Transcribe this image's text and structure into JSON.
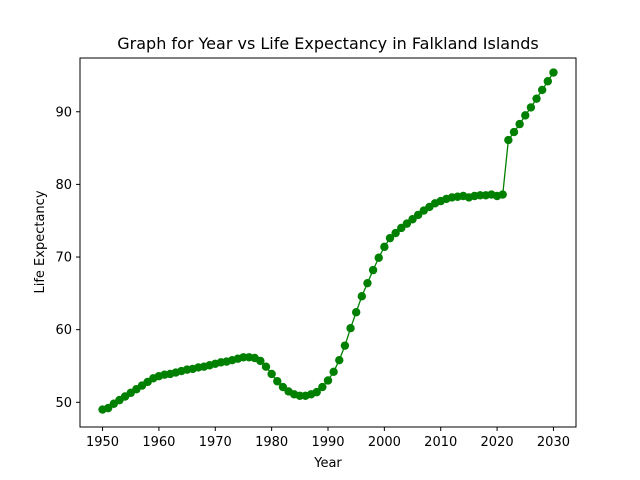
{
  "chart_data": {
    "type": "line",
    "title": "Graph for Year vs Life Expectancy in Falkland Islands",
    "xlabel": "Year",
    "ylabel": "Life Expectancy",
    "xlim": [
      1946.0,
      2034.0
    ],
    "ylim": [
      46.6,
      97.4
    ],
    "xticks": [
      1950,
      1960,
      1970,
      1980,
      1990,
      2000,
      2010,
      2020,
      2030
    ],
    "yticks": [
      50,
      60,
      70,
      80,
      90
    ],
    "grid": false,
    "series": [
      {
        "color": "#008000",
        "marker": "circle",
        "x": [
          1950,
          1951,
          1952,
          1953,
          1954,
          1955,
          1956,
          1957,
          1958,
          1959,
          1960,
          1961,
          1962,
          1963,
          1964,
          1965,
          1966,
          1967,
          1968,
          1969,
          1970,
          1971,
          1972,
          1973,
          1974,
          1975,
          1976,
          1977,
          1978,
          1979,
          1980,
          1981,
          1982,
          1983,
          1984,
          1985,
          1986,
          1987,
          1988,
          1989,
          1990,
          1991,
          1992,
          1993,
          1994,
          1995,
          1996,
          1997,
          1998,
          1999,
          2000,
          2001,
          2002,
          2003,
          2004,
          2005,
          2006,
          2007,
          2008,
          2009,
          2010,
          2011,
          2012,
          2013,
          2014,
          2015,
          2016,
          2017,
          2018,
          2019,
          2020,
          2021,
          2022,
          2023,
          2024,
          2025,
          2026,
          2027,
          2028,
          2029,
          2030
        ],
        "y": [
          49.0,
          49.2,
          49.8,
          50.3,
          50.8,
          51.3,
          51.8,
          52.3,
          52.8,
          53.3,
          53.6,
          53.8,
          53.9,
          54.1,
          54.3,
          54.5,
          54.6,
          54.8,
          54.9,
          55.1,
          55.3,
          55.5,
          55.6,
          55.8,
          56.0,
          56.2,
          56.2,
          56.1,
          55.7,
          54.9,
          53.9,
          52.9,
          52.1,
          51.5,
          51.1,
          50.9,
          50.9,
          51.1,
          51.4,
          52.1,
          53.0,
          54.2,
          55.8,
          57.8,
          60.2,
          62.4,
          64.6,
          66.4,
          68.2,
          69.9,
          71.4,
          72.6,
          73.3,
          74.0,
          74.6,
          75.2,
          75.8,
          76.4,
          76.9,
          77.4,
          77.7,
          78.0,
          78.2,
          78.3,
          78.4,
          78.2,
          78.4,
          78.5,
          78.5,
          78.6,
          78.4,
          78.6,
          86.1,
          87.2,
          88.3,
          89.5,
          90.6,
          91.8,
          93.0,
          94.2,
          95.4
        ]
      }
    ]
  }
}
